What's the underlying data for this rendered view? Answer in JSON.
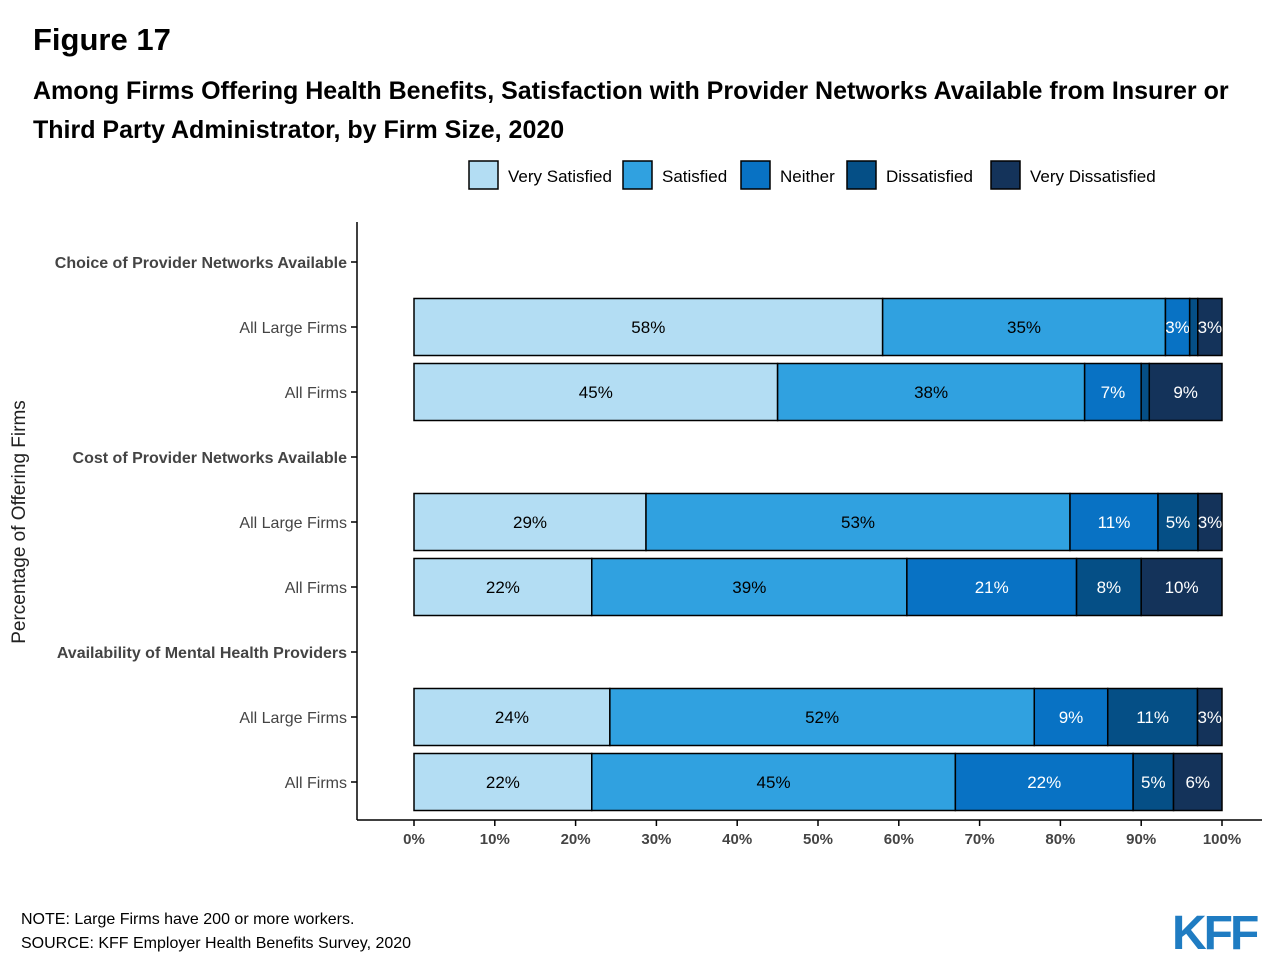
{
  "figure_label": "Figure 17",
  "title": "Among Firms Offering Health Benefits, Satisfaction with Provider Networks Available from Insurer or Third Party Administrator, by Firm Size, 2020",
  "note": "NOTE: Large Firms have 200 or more workers.",
  "source": "SOURCE: KFF Employer Health Benefits Survey, 2020",
  "logo_text": "KFF",
  "chart_data": {
    "type": "bar",
    "orientation": "horizontal",
    "stacked": true,
    "ylabel": "Percentage of Offering Firms",
    "xlim": [
      0,
      100
    ],
    "x_ticks": [
      "0%",
      "10%",
      "20%",
      "30%",
      "40%",
      "50%",
      "60%",
      "70%",
      "80%",
      "90%",
      "100%"
    ],
    "legend_position": "top",
    "series": [
      {
        "name": "Very Satisfied",
        "color": "#b3ddf3",
        "label_color": "#000000"
      },
      {
        "name": "Satisfied",
        "color": "#30a1e0",
        "label_color": "#000000"
      },
      {
        "name": "Neither",
        "color": "#0872c4",
        "label_color": "#ffffff"
      },
      {
        "name": "Dissatisfied",
        "color": "#054f86",
        "label_color": "#ffffff"
      },
      {
        "name": "Very Dissatisfied",
        "color": "#14335a",
        "label_color": "#ffffff"
      }
    ],
    "groups": [
      {
        "heading": "Choice of Provider Networks Available",
        "rows": [
          {
            "label": "All Large Firms",
            "values": [
              58,
              35,
              3,
              1,
              3
            ],
            "labels": [
              "58%",
              "35%",
              "3%",
              "",
              "3%"
            ]
          },
          {
            "label": "All Firms",
            "values": [
              45,
              38,
              7,
              1,
              9
            ],
            "labels": [
              "45%",
              "38%",
              "7%",
              "",
              "9%"
            ]
          }
        ]
      },
      {
        "heading": "Cost of Provider Networks Available",
        "rows": [
          {
            "label": "All Large Firms",
            "values": [
              29,
              53,
              11,
              5,
              3
            ],
            "labels": [
              "29%",
              "53%",
              "11%",
              "5%",
              "3%"
            ]
          },
          {
            "label": "All Firms",
            "values": [
              22,
              39,
              21,
              8,
              10
            ],
            "labels": [
              "22%",
              "39%",
              "21%",
              "8%",
              "10%"
            ]
          }
        ]
      },
      {
        "heading": "Availability of Mental Health Providers",
        "rows": [
          {
            "label": "All Large Firms",
            "values": [
              24,
              52,
              9,
              11,
              3
            ],
            "labels": [
              "24%",
              "52%",
              "9%",
              "11%",
              "3%"
            ]
          },
          {
            "label": "All Firms",
            "values": [
              22,
              45,
              22,
              5,
              6
            ],
            "labels": [
              "22%",
              "45%",
              "22%",
              "5%",
              "6%"
            ]
          }
        ]
      }
    ]
  }
}
